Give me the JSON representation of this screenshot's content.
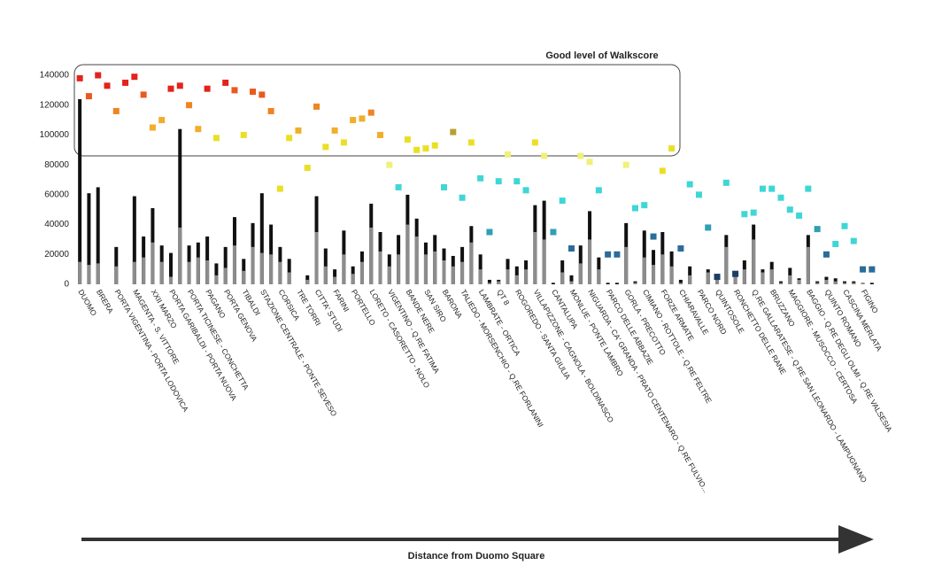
{
  "chart_data": {
    "type": "bar",
    "annotation": "Good level of Walkscore",
    "x_label": "Distance from Duomo Square",
    "ylim": [
      0,
      140000
    ],
    "yticks": [
      0,
      20000,
      40000,
      60000,
      80000,
      100000,
      120000,
      140000
    ],
    "grid": false,
    "categories": [
      "DUOMO",
      null,
      "BRERA",
      null,
      "PORTA VIGENTINA - PORTA LODOVICA",
      null,
      "MAGENTA - S. VITTORE",
      null,
      "XXII MARZO",
      null,
      "PORTA GARIBALDI - PORTA NUOVA",
      null,
      "PORTA TICINESE - CONCHETTA",
      null,
      "PAGANO",
      null,
      "PORTA GENOVA",
      null,
      "TIBALDI",
      null,
      "STAZIONE CENTRALE - PONTE SEVESO",
      null,
      "CORSICA",
      null,
      "TRE TORRI",
      null,
      "CITTA' STUDI",
      null,
      "FARINI",
      null,
      "PORTELLO",
      null,
      "LORETO - CASORETTO - NOLO",
      null,
      "VIGENTINO - Q.RE FATIMA",
      null,
      "BANDE NERE",
      null,
      "SAN SIRO",
      null,
      "BARONA",
      null,
      "TALIEDO - MORSENCHIO - Q.RE FORLANINI",
      null,
      "LAMBRATE - ORTICA",
      null,
      "QT 8",
      null,
      "ROGOREDO - SANTA GIULIA",
      null,
      "VILLAPIZZONE - CAGNOLA - BOLDINASCO",
      null,
      "CANTALUPA",
      null,
      "MONLUE - PONTE LAMBRO",
      null,
      "NIGUARDA - CA' GRANDA - PRATO CENTENARO - Q.RE FULVIO...",
      null,
      "PARCO DELLE ABBAZIE",
      null,
      "GORLA - PRECOTTO",
      null,
      "CIMIANO - ROTTOLE - Q.RE FELTRE",
      null,
      "FORZE ARMATE",
      null,
      "CHIARAVALLE",
      null,
      "PARCO NORD",
      null,
      "QUINTOSOLE",
      null,
      "RONCHETTO DELLE RANE",
      null,
      "Q.RE GALLARATESE - Q.RE SAN LEONARDO - LAMPUGNANO",
      null,
      "BRUZZANO",
      null,
      "MAGGIORE - MUSOCCO - CERTOSA",
      null,
      "BAGGIO - Q.RE DEGLI OLMI - Q.RE VALSESIA",
      null,
      "QUINTO ROMANO",
      null,
      "CASCINA MERLATA",
      null,
      "FIGINO",
      null
    ],
    "series": [
      {
        "kind": "bar",
        "color": "#111111",
        "values": [
          124000,
          61000,
          65000,
          0,
          25000,
          0,
          59000,
          32000,
          51000,
          26000,
          21000,
          104000,
          26000,
          28000,
          32000,
          14000,
          25000,
          45000,
          17000,
          41000,
          61000,
          40000,
          25000,
          17000,
          0,
          6000,
          59000,
          24000,
          10000,
          36000,
          12000,
          22000,
          54000,
          35000,
          20000,
          33000,
          60000,
          44000,
          28000,
          33000,
          24000,
          19000,
          25000,
          39000,
          20000,
          3000,
          3000,
          17000,
          12000,
          16000,
          53000,
          56000,
          1000,
          16000,
          6000,
          26000,
          49000,
          18000,
          1000,
          1000,
          41000,
          2000,
          36000,
          23000,
          35000,
          22000,
          3000,
          12000,
          0,
          10000,
          6000,
          33000,
          8000,
          16000,
          40000,
          10000,
          15000,
          2000,
          11000,
          4000,
          33000,
          2000,
          5000,
          4000,
          2000,
          2000,
          1000,
          1000
        ]
      },
      {
        "kind": "bar",
        "color": "#8c8c8c",
        "values": [
          15000,
          13000,
          14000,
          0,
          12000,
          0,
          15000,
          18000,
          28000,
          15000,
          5000,
          38000,
          15000,
          18000,
          16000,
          6000,
          11000,
          26000,
          9000,
          25000,
          21000,
          20000,
          15000,
          8000,
          0,
          3000,
          35000,
          12000,
          5000,
          20000,
          7000,
          15000,
          38000,
          22000,
          12000,
          20000,
          40000,
          32000,
          20000,
          22000,
          16000,
          12000,
          15000,
          28000,
          10000,
          1000,
          2000,
          10000,
          6000,
          10000,
          35000,
          30000,
          0,
          8000,
          2000,
          14000,
          30000,
          10000,
          0,
          0,
          25000,
          1000,
          18000,
          13000,
          20000,
          12000,
          1000,
          6000,
          0,
          8000,
          5000,
          25000,
          5000,
          10000,
          30000,
          8000,
          10000,
          1000,
          6000,
          3000,
          25000,
          1000,
          3000,
          2000,
          1000,
          1000,
          1000,
          0
        ]
      },
      {
        "kind": "scatter",
        "values": [
          138000,
          126000,
          140000,
          133000,
          116000,
          135000,
          139000,
          127000,
          105000,
          110000,
          131000,
          133000,
          120000,
          104000,
          131000,
          98000,
          135000,
          130000,
          100000,
          129000,
          127000,
          116000,
          64000,
          98000,
          103000,
          78000,
          119000,
          92000,
          103000,
          95000,
          110000,
          111000,
          115000,
          100000,
          80000,
          65000,
          97000,
          90000,
          91000,
          93000,
          65000,
          102000,
          58000,
          95000,
          71000,
          35000,
          69000,
          87000,
          69000,
          63000,
          95000,
          86000,
          35000,
          56000,
          24000,
          86000,
          82000,
          63000,
          20000,
          20000,
          80000,
          51000,
          53000,
          32000,
          76000,
          91000,
          24000,
          67000,
          60000,
          38000,
          5000,
          68000,
          7000,
          47000,
          48000,
          64000,
          64000,
          58000,
          50000,
          46000,
          64000,
          37000,
          20000,
          27000,
          39000,
          29000,
          10000,
          10000
        ],
        "colors": [
          "#e3231b",
          "#e95a1e",
          "#e3231b",
          "#e3231b",
          "#ee8422",
          "#e3231b",
          "#e3231b",
          "#e95a1e",
          "#f2ad2a",
          "#f2ad2a",
          "#e3231b",
          "#e3231b",
          "#ee8422",
          "#f2ad2a",
          "#e3231b",
          "#eadf25",
          "#e3231b",
          "#e95a1e",
          "#eadf25",
          "#e95a1e",
          "#e95a1e",
          "#ee8422",
          "#eadf25",
          "#eadf25",
          "#f2ad2a",
          "#eadf25",
          "#ee8422",
          "#eadf25",
          "#f2ad2a",
          "#eadf25",
          "#f2ad2a",
          "#f2ad2a",
          "#ee8422",
          "#f2ad2a",
          "#f0f07a",
          "#3fd6d6",
          "#eadf25",
          "#eadf25",
          "#eadf25",
          "#eadf25",
          "#3fd6d6",
          "#b8a032",
          "#3fd6d6",
          "#eadf25",
          "#3fd6d6",
          "#2f9fb3",
          "#3fd6d6",
          "#f0f07a",
          "#3fd6d6",
          "#3fd6d6",
          "#eadf25",
          "#f0f07a",
          "#2f9fb3",
          "#3fd6d6",
          "#2b6c99",
          "#f0f07a",
          "#f0f07a",
          "#3fd6d6",
          "#2b6c99",
          "#2b6c99",
          "#f0f07a",
          "#3fd6d6",
          "#3fd6d6",
          "#2b6c99",
          "#eadf25",
          "#eadf25",
          "#2b6c99",
          "#3fd6d6",
          "#3fd6d6",
          "#2f9fb3",
          "#1b3d66",
          "#3fd6d6",
          "#1b3d66",
          "#3fd6d6",
          "#3fd6d6",
          "#3fd6d6",
          "#3fd6d6",
          "#3fd6d6",
          "#3fd6d6",
          "#3fd6d6",
          "#3fd6d6",
          "#2f9fb3",
          "#2b6c99",
          "#3fd6d6",
          "#3fd6d6",
          "#3fd6d6",
          "#2b6c99",
          "#2b6c99"
        ]
      }
    ]
  }
}
